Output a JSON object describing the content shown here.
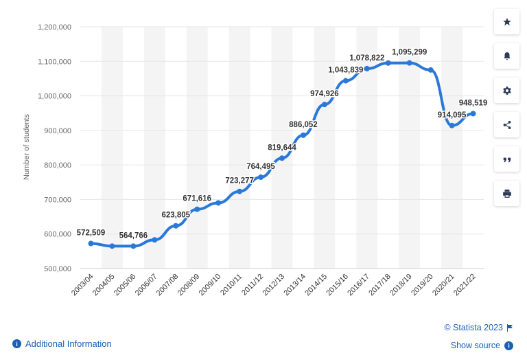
{
  "chart_data": {
    "type": "line",
    "ylabel": "Number of students",
    "ylim": [
      500000,
      1200000
    ],
    "yticks": [
      "500,000",
      "600,000",
      "700,000",
      "800,000",
      "900,000",
      "1,000,000",
      "1,100,000",
      "1,200,000"
    ],
    "ytick_values": [
      500000,
      600000,
      700000,
      800000,
      900000,
      1000000,
      1100000,
      1200000
    ],
    "categories": [
      "2003/04",
      "2004/05",
      "2005/06",
      "2006/07",
      "2007/08",
      "2008/09",
      "2009/10",
      "2010/11",
      "2011/12",
      "2012/13",
      "2013/14",
      "2014/15",
      "2015/16",
      "2016/17",
      "2017/18",
      "2018/19",
      "2019/20",
      "2020/21",
      "2021/22"
    ],
    "values": [
      572509,
      565000,
      564766,
      583000,
      623805,
      671616,
      690000,
      723277,
      764495,
      819644,
      886052,
      974926,
      1043839,
      1078822,
      1095000,
      1095299,
      1075000,
      914095,
      948519
    ],
    "data_labels": [
      "572,509",
      "",
      "564,766",
      "",
      "623,805",
      "671,616",
      "",
      "723,277",
      "764,495",
      "819,644",
      "886,052",
      "974,926",
      "1,043,839",
      "1,078,822",
      "",
      "1,095,299",
      "",
      "914,095",
      "948,519"
    ],
    "line_color": "#2a78d8",
    "grid": true,
    "alternating_column_bands": true
  },
  "toolbar": {
    "buttons": [
      {
        "name": "favorite-button",
        "icon": "star-icon"
      },
      {
        "name": "notification-button",
        "icon": "bell-icon"
      },
      {
        "name": "settings-button",
        "icon": "gear-icon"
      },
      {
        "name": "share-button",
        "icon": "share-icon"
      },
      {
        "name": "cite-button",
        "icon": "quote-icon"
      },
      {
        "name": "print-button",
        "icon": "printer-icon"
      }
    ]
  },
  "footer": {
    "additional_info": "Additional Information",
    "copyright": "© Statista 2023",
    "show_source": "Show source"
  }
}
